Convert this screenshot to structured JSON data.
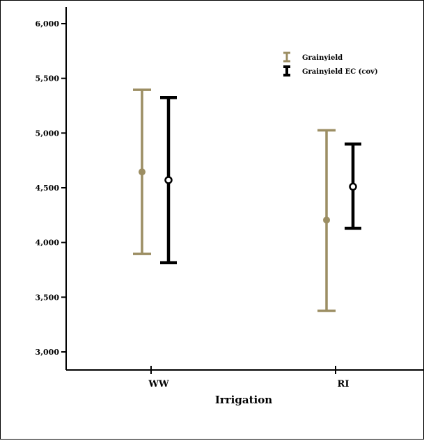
{
  "chart_data": {
    "type": "errorbar",
    "title": "",
    "xlabel": "Irrigation",
    "ylabel": "",
    "ylim": [
      2900,
      6200
    ],
    "yticks": [
      3000,
      3500,
      4000,
      4500,
      5000,
      5500,
      6000
    ],
    "ytick_labels": [
      "3,000",
      "3,500",
      "4,000",
      "4,500",
      "5,000",
      "5,500",
      "6,000"
    ],
    "categories": [
      "WW",
      "RI"
    ],
    "grid": false,
    "legend_position": "top-right",
    "series": [
      {
        "name": "Grainyield",
        "color": "#9c8e63",
        "marker": "filled-circle",
        "points": [
          {
            "category": "WW",
            "mean": 4645,
            "lower": 3895,
            "upper": 5395
          },
          {
            "category": "RI",
            "mean": 4205,
            "lower": 3375,
            "upper": 5025
          }
        ]
      },
      {
        "name": "Grainyield EC (cov)",
        "color": "#000000",
        "marker": "open-circle",
        "points": [
          {
            "category": "WW",
            "mean": 4570,
            "lower": 3815,
            "upper": 5325
          },
          {
            "category": "RI",
            "mean": 4510,
            "lower": 4130,
            "upper": 4900
          }
        ]
      }
    ]
  }
}
